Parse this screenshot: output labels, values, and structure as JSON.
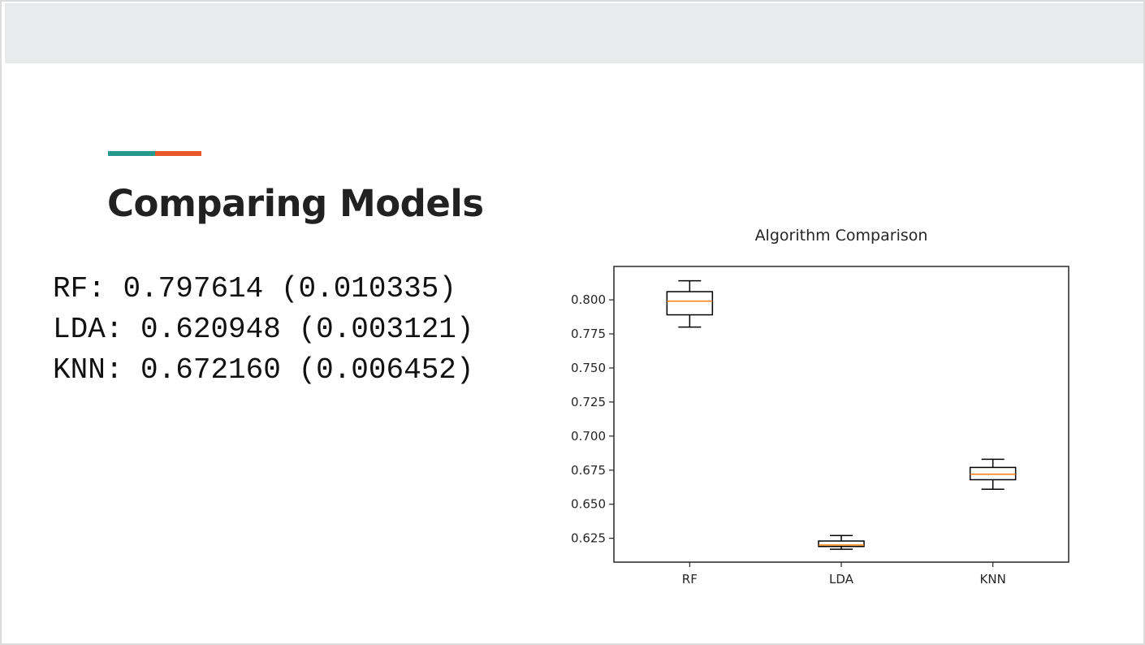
{
  "slide": {
    "title": "Comparing Models",
    "accent_colors": [
      "#26998f",
      "#e8572a"
    ]
  },
  "results": [
    {
      "label": "RF",
      "mean": "0.797614",
      "std": "0.010335"
    },
    {
      "label": "LDA",
      "mean": "0.620948",
      "std": "0.003121"
    },
    {
      "label": "KNN",
      "mean": "0.672160",
      "std": "0.006452"
    }
  ],
  "chart_data": {
    "type": "boxplot",
    "title": "Algorithm Comparison",
    "xlabel": "",
    "ylabel": "",
    "categories": [
      "RF",
      "LDA",
      "KNN"
    ],
    "boxes": [
      {
        "name": "RF",
        "whisker_low": 0.78,
        "q1": 0.789,
        "median": 0.799,
        "q3": 0.806,
        "whisker_high": 0.814
      },
      {
        "name": "LDA",
        "whisker_low": 0.617,
        "q1": 0.619,
        "median": 0.62,
        "q3": 0.623,
        "whisker_high": 0.627
      },
      {
        "name": "KNN",
        "whisker_low": 0.661,
        "q1": 0.668,
        "median": 0.672,
        "q3": 0.677,
        "whisker_high": 0.683
      }
    ],
    "ylim": [
      0.6075,
      0.8245
    ],
    "yticks": [
      "0.625",
      "0.650",
      "0.675",
      "0.700",
      "0.725",
      "0.750",
      "0.775",
      "0.800"
    ],
    "grid": false,
    "median_color": "#ff7f0e",
    "box_color": "#000000"
  }
}
